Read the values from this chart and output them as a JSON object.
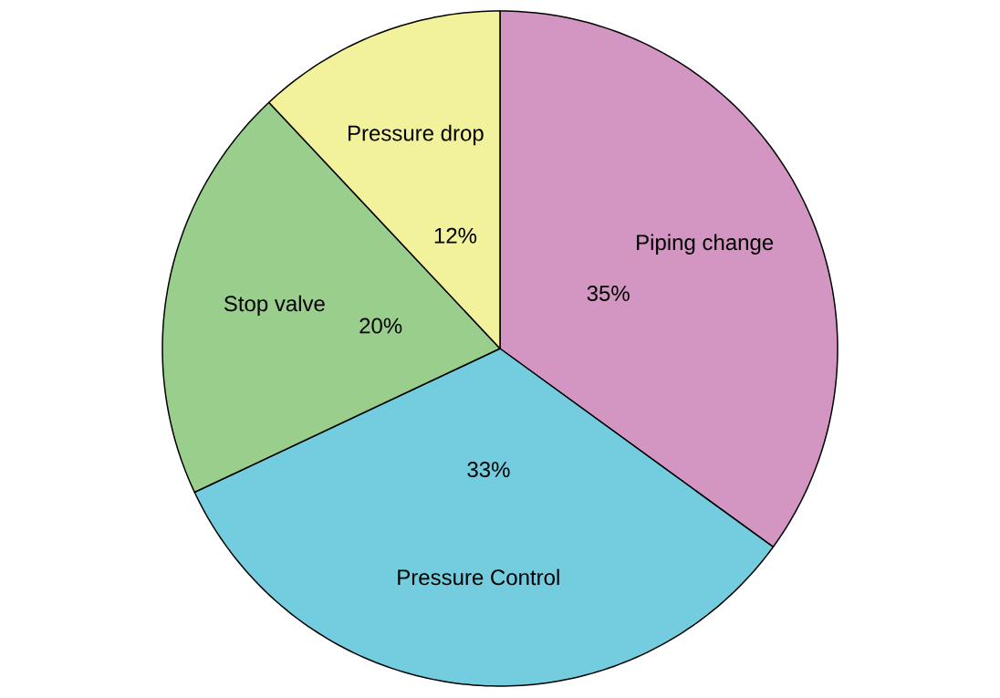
{
  "chart_data": {
    "type": "pie",
    "categories": [
      "Piping change",
      "Pressure Control",
      "Stop valve",
      "Pressure drop"
    ],
    "values": [
      35,
      33,
      20,
      12
    ],
    "value_labels": [
      "35%",
      "33%",
      "20%",
      "12%"
    ],
    "colors": [
      "#d396c3",
      "#74cddf",
      "#99ce8d",
      "#f3f29c"
    ]
  }
}
